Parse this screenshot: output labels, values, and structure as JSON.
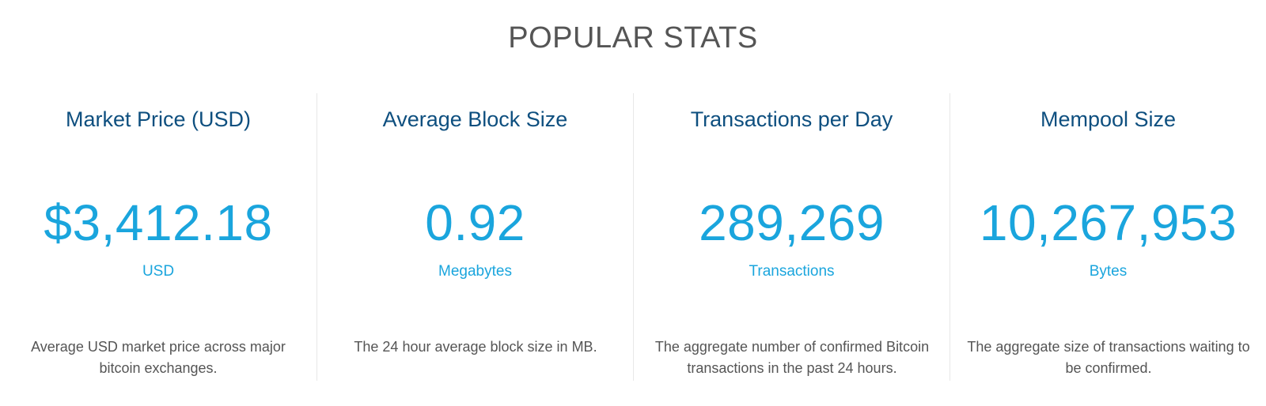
{
  "section": {
    "title": "POPULAR STATS"
  },
  "stats": [
    {
      "title": "Market Price (USD)",
      "value": "$3,412.18",
      "unit": "USD",
      "description": "Average USD market price across major bitcoin exchanges."
    },
    {
      "title": "Average Block Size",
      "value": "0.92",
      "unit": "Megabytes",
      "description": "The 24 hour average block size in MB."
    },
    {
      "title": "Transactions per Day",
      "value": "289,269",
      "unit": "Transactions",
      "description": "The aggregate number of confirmed Bitcoin transactions in the past 24 hours."
    },
    {
      "title": "Mempool Size",
      "value": "10,267,953",
      "unit": "Bytes",
      "description": "The aggregate size of transactions waiting to be confirmed."
    }
  ],
  "colors": {
    "heading": "#555555",
    "card_title": "#0e4f7f",
    "value": "#1aa5dd",
    "description": "#555555",
    "divider": "#e8e8e8"
  }
}
